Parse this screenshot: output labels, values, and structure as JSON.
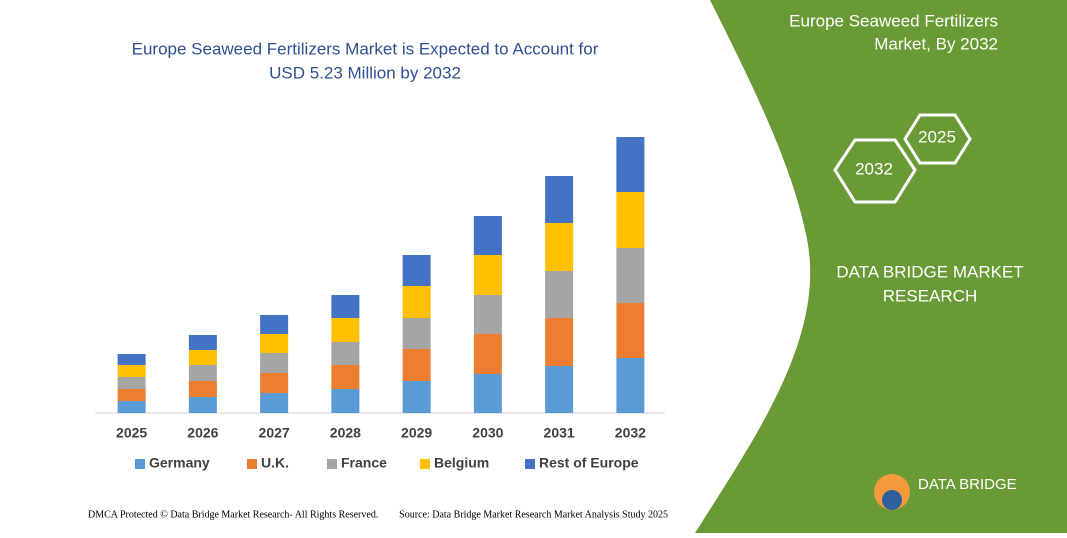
{
  "chart_data": {
    "type": "stacked-bar",
    "title": [
      "Europe Seaweed Fertilizers Market is Expected to Account for",
      "USD 5.23 Million by 2032"
    ],
    "categories": [
      "2025",
      "2026",
      "2027",
      "2028",
      "2029",
      "2030",
      "2031",
      "2032"
    ],
    "series": [
      {
        "name": "Germany",
        "color": "#5b9bd5",
        "values": [
          12,
          16,
          20,
          24,
          32,
          39,
          47,
          55
        ]
      },
      {
        "name": "U.K.",
        "color": "#ed7d31",
        "values": [
          12,
          16,
          20,
          24,
          32,
          40,
          48,
          55
        ]
      },
      {
        "name": "France",
        "color": "#a5a5a5",
        "values": [
          12,
          16,
          20,
          23,
          31,
          39,
          47,
          55
        ]
      },
      {
        "name": "Belgium",
        "color": "#ffc000",
        "values": [
          12,
          15,
          19,
          24,
          32,
          40,
          48,
          56
        ]
      },
      {
        "name": "Rest of Europe",
        "color": "#4472c4",
        "values": [
          11,
          15,
          19,
          23,
          31,
          39,
          47,
          55
        ]
      }
    ],
    "ylim": [
      0,
      290
    ]
  },
  "panel": {
    "title": [
      "Europe Seaweed Fertilizers",
      "Market, By 2032"
    ],
    "hexagons": [
      "2032",
      "2025"
    ],
    "company": [
      "DATA BRIDGE MARKET",
      "RESEARCH"
    ],
    "logo": "DATA BRIDGE"
  },
  "footer": {
    "left": "DMCA Protected © Data Bridge Market Research- All Rights Reserved.",
    "right": "Source: Data Bridge Market Research Market Analysis Study 2025"
  }
}
